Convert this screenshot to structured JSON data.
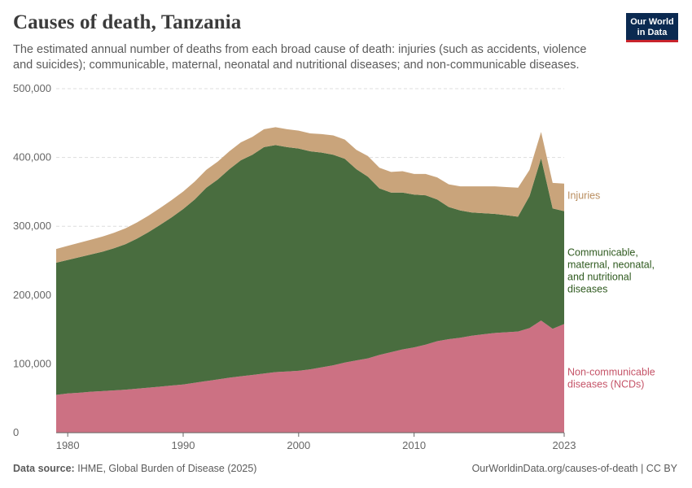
{
  "header": {
    "title": "Causes of death, Tanzania",
    "subtitle": "The estimated annual number of deaths from each broad cause of death: injuries (such as accidents, violence and suicides); communicable, maternal, neonatal and nutritional diseases; and non-communicable diseases."
  },
  "logo": {
    "line1": "Our World",
    "line2": "in Data"
  },
  "footer": {
    "source_label": "Data source:",
    "source_text": "IHME, Global Burden of Disease (2025)",
    "url": "OurWorldinData.org/causes-of-death | CC BY"
  },
  "colors": {
    "ncd": "#cc7183",
    "communicable": "#496d3f",
    "injuries": "#c9a47b",
    "grid": "#dddddd",
    "axis": "#666666"
  },
  "chart_data": {
    "type": "area",
    "stacked": true,
    "title": "Causes of death, Tanzania",
    "xlabel": "",
    "ylabel": "",
    "xlim": [
      1979,
      2023
    ],
    "ylim": [
      0,
      500000
    ],
    "y_ticks": [
      0,
      100000,
      200000,
      300000,
      400000,
      500000
    ],
    "y_tick_labels": [
      "0",
      "100,000",
      "200,000",
      "300,000",
      "400,000",
      "500,000"
    ],
    "x_ticks": [
      1980,
      1990,
      2000,
      2010,
      2023
    ],
    "x_tick_labels": [
      "1980",
      "1990",
      "2000",
      "2010",
      "2023"
    ],
    "grid": "horizontal-dashed",
    "x": [
      1979,
      1980,
      1981,
      1982,
      1983,
      1984,
      1985,
      1986,
      1987,
      1988,
      1989,
      1990,
      1991,
      1992,
      1993,
      1994,
      1995,
      1996,
      1997,
      1998,
      1999,
      2000,
      2001,
      2002,
      2003,
      2004,
      2005,
      2006,
      2007,
      2008,
      2009,
      2010,
      2011,
      2012,
      2013,
      2014,
      2015,
      2016,
      2017,
      2018,
      2019,
      2020,
      2021,
      2022,
      2023
    ],
    "series": [
      {
        "name": "Non-communicable diseases (NCDs)",
        "label_lines": [
          "Non-communicable",
          "diseases (NCDs)"
        ],
        "values": [
          55000,
          57000,
          58000,
          59500,
          60500,
          61500,
          62500,
          64000,
          65500,
          67000,
          68500,
          70000,
          72500,
          75000,
          77500,
          80000,
          82000,
          84000,
          86000,
          88000,
          89000,
          90000,
          92000,
          95000,
          98000,
          102000,
          105000,
          108000,
          113000,
          117000,
          121000,
          124000,
          128000,
          133000,
          136000,
          138000,
          141000,
          143000,
          145000,
          146000,
          147000,
          152000,
          163000,
          151000,
          158000
        ]
      },
      {
        "name": "Communicable, maternal, neonatal, and nutritional diseases",
        "label_lines": [
          "Communicable,",
          "maternal, neonatal,",
          "and nutritional",
          "diseases"
        ],
        "values": [
          192000,
          194000,
          197000,
          199500,
          202500,
          206500,
          211500,
          218000,
          226000,
          235000,
          244500,
          255000,
          266500,
          281000,
          290500,
          303000,
          314000,
          320000,
          329000,
          330000,
          326000,
          323000,
          317000,
          312000,
          306000,
          296000,
          278000,
          264000,
          242000,
          232000,
          228000,
          222000,
          217000,
          206000,
          192000,
          185000,
          179000,
          176000,
          173000,
          170000,
          167000,
          192000,
          236000,
          175000,
          164000
        ]
      },
      {
        "name": "Injuries",
        "label_lines": [
          "Injuries"
        ],
        "values": [
          20000,
          20500,
          21000,
          21500,
          22000,
          22500,
          23000,
          23500,
          24000,
          24500,
          25000,
          25500,
          26000,
          26000,
          26000,
          26000,
          26000,
          26000,
          26000,
          26000,
          26000,
          26000,
          26000,
          27000,
          28000,
          28000,
          28000,
          30000,
          30000,
          30000,
          31000,
          30000,
          31000,
          32000,
          33000,
          35000,
          38000,
          39000,
          40000,
          41000,
          42000,
          38000,
          38000,
          37000,
          40000
        ]
      }
    ]
  }
}
